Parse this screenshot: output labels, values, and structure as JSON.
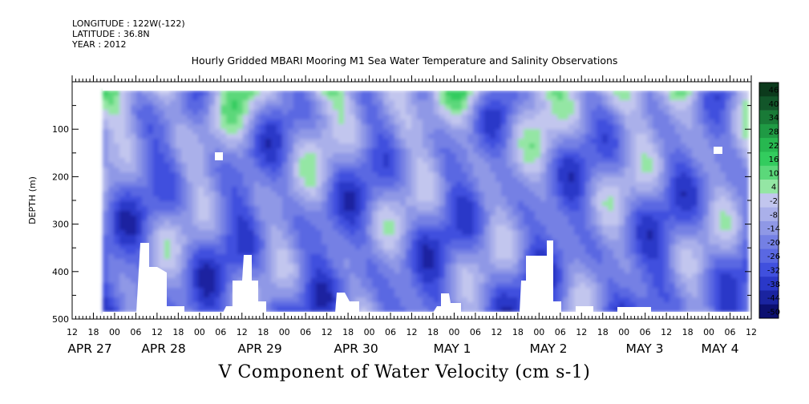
{
  "header": {
    "longitude": "LONGITUDE : 122W(-122)",
    "latitude": "LATITUDE : 36.8N",
    "year": "YEAR : 2012"
  },
  "chart_data": {
    "type": "heatmap",
    "title": "Hourly Gridded MBARI Mooring M1 Sea Water Temperature and Salinity Observations",
    "xlabel": "V Component of Water Velocity (cm s-1)",
    "ylabel": "DEPTH (m)",
    "x_range_hours": [
      "APR 26 12:00",
      "MAY 4 12:00"
    ],
    "hour_ticks": [
      "12",
      "18",
      "00",
      "06",
      "12",
      "18",
      "00",
      "06",
      "12",
      "18",
      "00",
      "06",
      "12",
      "18",
      "00",
      "06",
      "12",
      "18",
      "00",
      "06",
      "12",
      "18",
      "00",
      "06",
      "12",
      "18",
      "00",
      "06",
      "12",
      "18",
      "00",
      "06",
      "12"
    ],
    "date_labels": [
      "APR 27",
      "APR 28",
      "APR 29",
      "APR 30",
      "MAY  1",
      "MAY  2",
      "MAY  3",
      "MAY  4"
    ],
    "y_range": [
      500,
      0
    ],
    "y_ticks": [
      100,
      200,
      300,
      400,
      500
    ],
    "colorbar_levels": [
      "46",
      "40",
      "34",
      "28",
      "22",
      "16",
      "10",
      "4",
      "-2",
      "-8",
      "-14",
      "-20",
      "-26",
      "-32",
      "-38",
      "-44",
      "-50"
    ],
    "colorbar_colors": [
      "#0c3a1c",
      "#12562a",
      "#197a37",
      "#1f9a44",
      "#27b850",
      "#33cc5e",
      "#5bd87a",
      "#94e6a4",
      "#c2c6ee",
      "#aab0ea",
      "#8f98e6",
      "#7480e4",
      "#5a68e2",
      "#4050de",
      "#2a38c8",
      "#1a24a0",
      "#0c1070"
    ],
    "time_ticks_0_to_1": [
      0.0,
      0.5,
      1.0
    ],
    "notes": ""
  }
}
